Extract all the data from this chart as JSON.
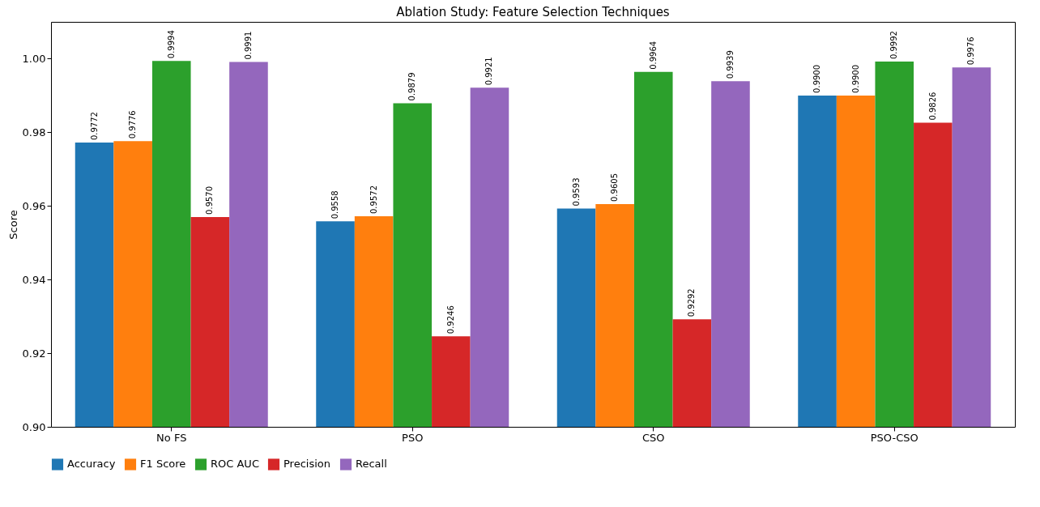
{
  "chart_data": {
    "type": "bar",
    "title": "Ablation Study: Feature Selection Techniques",
    "ylabel": "Score",
    "categories": [
      "No FS",
      "PSO",
      "CSO",
      "PSO-CSO"
    ],
    "series": [
      {
        "name": "Accuracy",
        "color": "#1f77b4",
        "values": [
          0.9772,
          0.9558,
          0.9593,
          0.99
        ],
        "value_labels": [
          "0.9772",
          "0.9558",
          "0.9593",
          "0.9900"
        ]
      },
      {
        "name": "F1 Score",
        "color": "#ff7f0e",
        "values": [
          0.9776,
          0.9572,
          0.9605,
          0.99
        ],
        "value_labels": [
          "0.9776",
          "0.9572",
          "0.9605",
          "0.9900"
        ]
      },
      {
        "name": "ROC AUC",
        "color": "#2ca02c",
        "values": [
          0.9994,
          0.9879,
          0.9964,
          0.9992
        ],
        "value_labels": [
          "0.9994",
          "0.9879",
          "0.9964",
          "0.9992"
        ]
      },
      {
        "name": "Precision",
        "color": "#d62728",
        "values": [
          0.957,
          0.9246,
          0.9292,
          0.9826
        ],
        "value_labels": [
          "0.9570",
          "0.9246",
          "0.9292",
          "0.9826"
        ]
      },
      {
        "name": "Recall",
        "color": "#9467bd",
        "values": [
          0.9991,
          0.9921,
          0.9939,
          0.9976
        ],
        "value_labels": [
          "0.9991",
          "0.9921",
          "0.9939",
          "0.9976"
        ]
      }
    ],
    "ylim": [
      0.9,
      1.01
    ],
    "yticks": [
      {
        "value": 0.9,
        "label": "0.90"
      },
      {
        "value": 0.92,
        "label": "0.92"
      },
      {
        "value": 0.94,
        "label": "0.94"
      },
      {
        "value": 0.96,
        "label": "0.96"
      },
      {
        "value": 0.98,
        "label": "0.98"
      },
      {
        "value": 1.0,
        "label": "1.00"
      }
    ],
    "legend": "bottom"
  }
}
